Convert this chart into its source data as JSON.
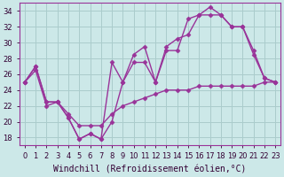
{
  "background_color": "#cce8e8",
  "grid_color": "#aacccc",
  "line_color": "#993399",
  "marker": "D",
  "markersize": 2.5,
  "linewidth": 1.0,
  "xlabel": "Windchill (Refroidissement éolien,°C)",
  "xlabel_fontsize": 7,
  "tick_fontsize": 6,
  "xlim": [
    -0.5,
    23.5
  ],
  "ylim": [
    17,
    35
  ],
  "yticks": [
    18,
    20,
    22,
    24,
    26,
    28,
    30,
    32,
    34
  ],
  "xticks": [
    0,
    1,
    2,
    3,
    4,
    5,
    6,
    7,
    8,
    9,
    10,
    11,
    12,
    13,
    14,
    15,
    16,
    17,
    18,
    19,
    20,
    21,
    22,
    23
  ],
  "series1_x": [
    0,
    1,
    2,
    3,
    4,
    5,
    6,
    7,
    8,
    9,
    10,
    11,
    12,
    13,
    14,
    15,
    16,
    17,
    18,
    19,
    20,
    21,
    22,
    23
  ],
  "series1_y": [
    25.0,
    26.5,
    22.0,
    22.5,
    21.0,
    19.5,
    19.5,
    19.5,
    21.0,
    22.0,
    22.5,
    23.0,
    23.5,
    24.0,
    24.0,
    24.0,
    24.5,
    24.5,
    24.5,
    24.5,
    24.5,
    24.5,
    25.0,
    25.0
  ],
  "series2_x": [
    0,
    1,
    2,
    3,
    4,
    5,
    6,
    7,
    8,
    9,
    10,
    11,
    12,
    13,
    14,
    15,
    16,
    17,
    18,
    19,
    20,
    21,
    22,
    23
  ],
  "series2_y": [
    25.0,
    27.0,
    22.5,
    22.5,
    20.5,
    17.8,
    18.5,
    17.8,
    20.0,
    25.0,
    27.5,
    27.5,
    25.0,
    29.0,
    29.0,
    33.0,
    33.5,
    34.5,
    33.5,
    32.0,
    32.0,
    29.0,
    25.5,
    25.0
  ],
  "series3_x": [
    0,
    1,
    2,
    3,
    4,
    5,
    6,
    7,
    8,
    9,
    10,
    11,
    12,
    13,
    14,
    15,
    16,
    17,
    18,
    19,
    20,
    21,
    22,
    23
  ],
  "series3_y": [
    25.0,
    27.0,
    22.5,
    22.5,
    20.5,
    17.8,
    18.5,
    17.8,
    27.5,
    25.0,
    28.5,
    29.5,
    25.0,
    29.5,
    30.5,
    31.0,
    33.5,
    33.5,
    33.5,
    32.0,
    32.0,
    28.5,
    25.5,
    25.0
  ]
}
